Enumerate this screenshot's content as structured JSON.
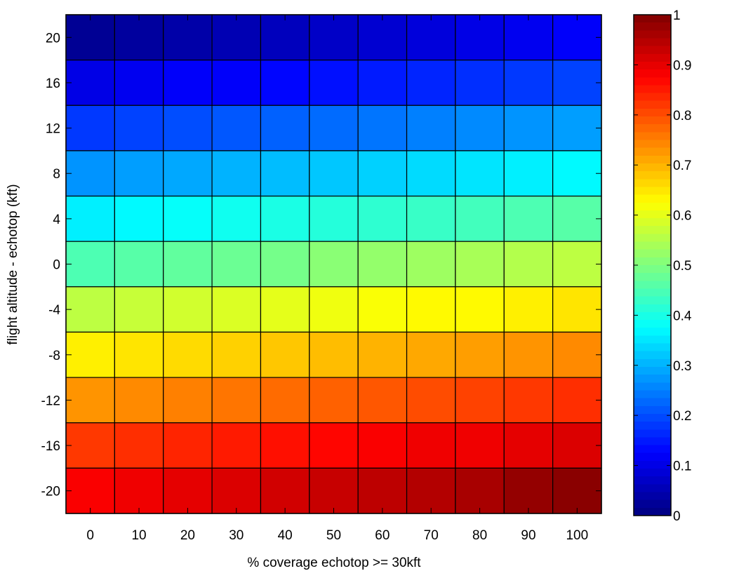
{
  "chart_data": {
    "type": "heatmap",
    "title": "",
    "xlabel": "% coverage echotop >= 30kft",
    "ylabel": "flight altitude - echotop (kft)",
    "x": [
      0,
      10,
      20,
      30,
      40,
      50,
      60,
      70,
      80,
      90,
      100
    ],
    "x_tick_labels": [
      "0",
      "10",
      "20",
      "30",
      "40",
      "50",
      "60",
      "70",
      "80",
      "90",
      "100"
    ],
    "y": [
      20,
      16,
      12,
      8,
      4,
      0,
      -4,
      -8,
      -12,
      -16,
      -20
    ],
    "y_tick_labels": [
      "20",
      "16",
      "12",
      "8",
      "4",
      "0",
      "-4",
      "-8",
      "-12",
      "-16",
      "-20"
    ],
    "values": [
      [
        0.02,
        0.03,
        0.04,
        0.05,
        0.06,
        0.07,
        0.08,
        0.09,
        0.1,
        0.11,
        0.12
      ],
      [
        0.1,
        0.11,
        0.12,
        0.12,
        0.13,
        0.14,
        0.15,
        0.16,
        0.17,
        0.18,
        0.19
      ],
      [
        0.18,
        0.19,
        0.2,
        0.21,
        0.22,
        0.23,
        0.24,
        0.25,
        0.26,
        0.27,
        0.28
      ],
      [
        0.27,
        0.28,
        0.29,
        0.3,
        0.31,
        0.32,
        0.33,
        0.34,
        0.35,
        0.36,
        0.37
      ],
      [
        0.36,
        0.37,
        0.38,
        0.39,
        0.4,
        0.41,
        0.42,
        0.43,
        0.44,
        0.45,
        0.46
      ],
      [
        0.45,
        0.46,
        0.47,
        0.48,
        0.49,
        0.51,
        0.52,
        0.53,
        0.54,
        0.55,
        0.56
      ],
      [
        0.56,
        0.57,
        0.58,
        0.59,
        0.6,
        0.61,
        0.62,
        0.63,
        0.63,
        0.64,
        0.65
      ],
      [
        0.64,
        0.65,
        0.66,
        0.67,
        0.68,
        0.69,
        0.7,
        0.71,
        0.72,
        0.73,
        0.74
      ],
      [
        0.73,
        0.74,
        0.75,
        0.76,
        0.77,
        0.78,
        0.79,
        0.8,
        0.81,
        0.82,
        0.83
      ],
      [
        0.82,
        0.83,
        0.84,
        0.85,
        0.86,
        0.87,
        0.88,
        0.89,
        0.89,
        0.9,
        0.91
      ],
      [
        0.88,
        0.89,
        0.9,
        0.91,
        0.92,
        0.93,
        0.94,
        0.95,
        0.96,
        0.98,
        0.99
      ]
    ],
    "colormap": "jet",
    "clim": [
      0,
      1
    ],
    "colorbar": {
      "ticks": [
        0,
        0.1,
        0.2,
        0.3,
        0.4,
        0.5,
        0.6,
        0.7,
        0.8,
        0.9,
        1
      ],
      "tick_labels": [
        "0",
        "0.1",
        "0.2",
        "0.3",
        "0.4",
        "0.5",
        "0.6",
        "0.7",
        "0.8",
        "0.9",
        "1"
      ]
    },
    "grid": false,
    "cell_edge_color": "#000000"
  }
}
